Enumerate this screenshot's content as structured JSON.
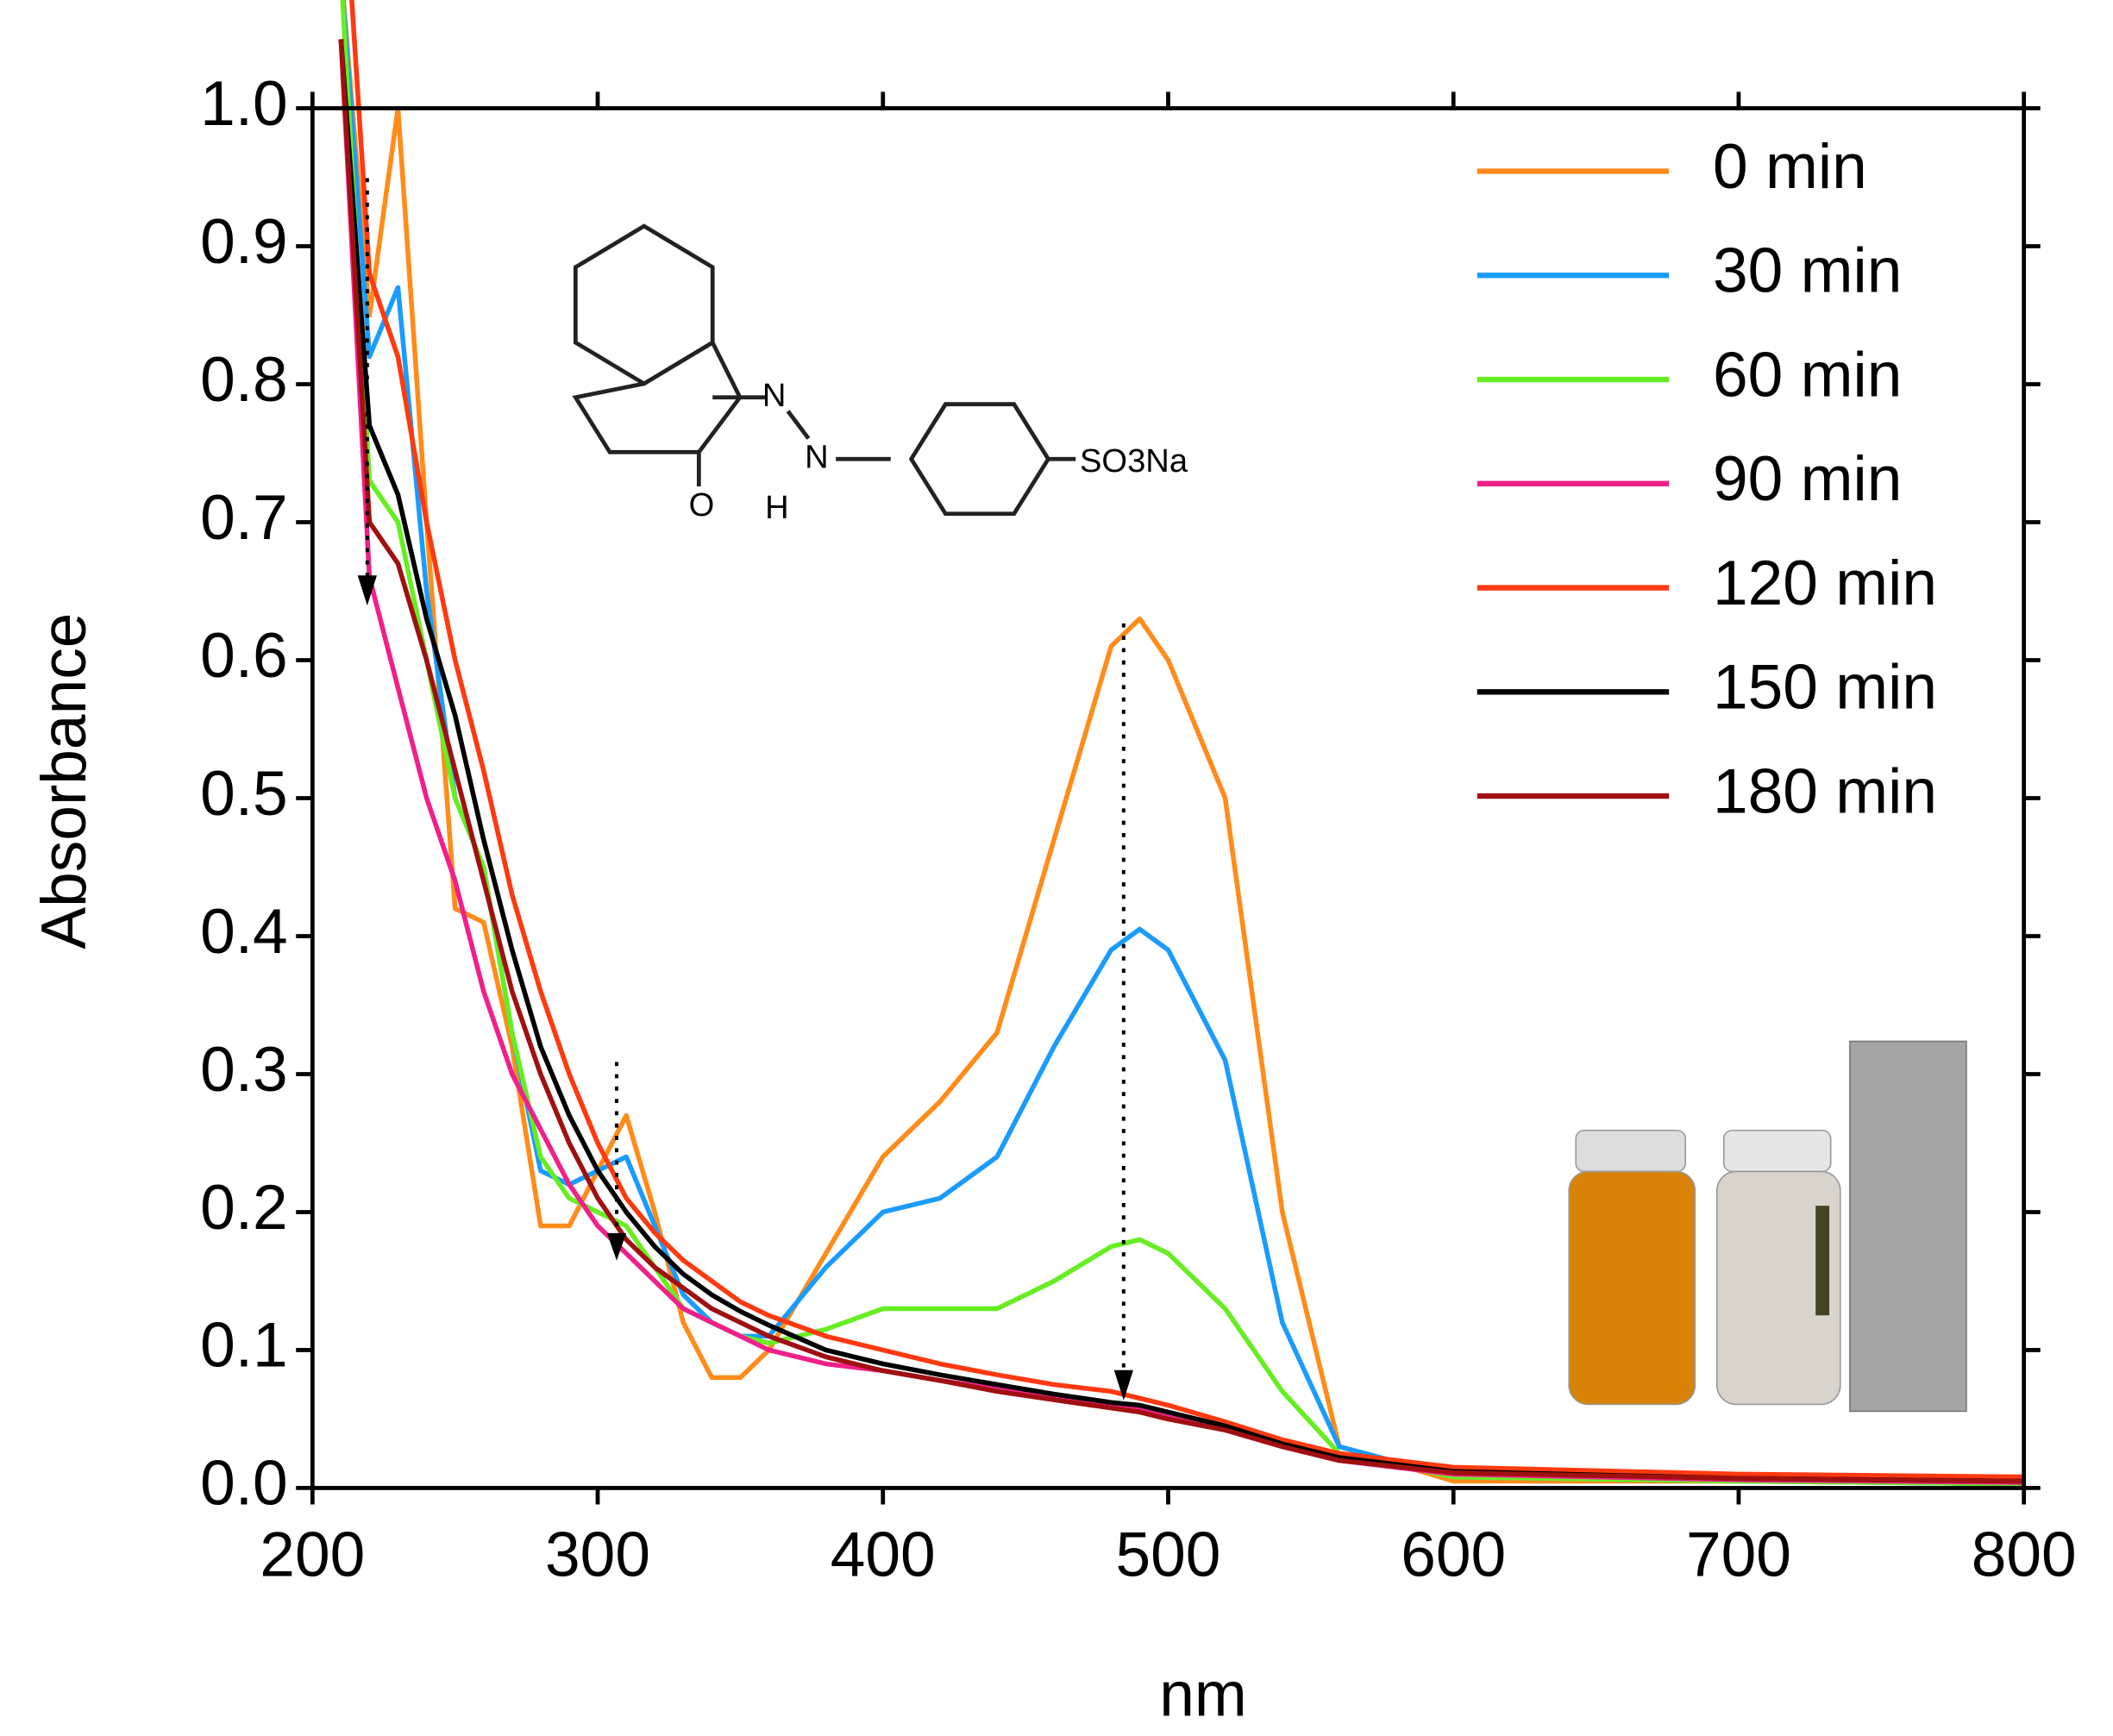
{
  "chart_data": {
    "type": "line",
    "x_label": "nm",
    "y_label": "Absorbance",
    "x": [
      210,
      220,
      230,
      240,
      250,
      260,
      270,
      280,
      290,
      300,
      310,
      320,
      330,
      340,
      350,
      360,
      380,
      400,
      420,
      440,
      460,
      480,
      490,
      500,
      520,
      540,
      560,
      600,
      700,
      800
    ],
    "series": [
      {
        "name": "0 min",
        "color": "#ff8c1a",
        "values": [
          1.1,
          0.85,
          1.0,
          0.7,
          0.42,
          0.41,
          0.32,
          0.19,
          0.19,
          0.23,
          0.27,
          0.2,
          0.12,
          0.08,
          0.08,
          0.1,
          0.17,
          0.24,
          0.28,
          0.33,
          0.47,
          0.61,
          0.63,
          0.6,
          0.5,
          0.2,
          0.03,
          0.005,
          0.005,
          0.003
        ]
      },
      {
        "name": "30 min",
        "color": "#1a9cff",
        "values": [
          1.1,
          0.82,
          0.87,
          0.65,
          0.5,
          0.45,
          0.33,
          0.23,
          0.22,
          0.23,
          0.24,
          0.19,
          0.14,
          0.12,
          0.11,
          0.11,
          0.16,
          0.2,
          0.21,
          0.24,
          0.32,
          0.39,
          0.405,
          0.39,
          0.31,
          0.12,
          0.03,
          0.008,
          0.005,
          0.003
        ]
      },
      {
        "name": "60 min",
        "color": "#66ee22",
        "values": [
          1.1,
          0.73,
          0.7,
          0.6,
          0.5,
          0.45,
          0.33,
          0.24,
          0.21,
          0.2,
          0.19,
          0.16,
          0.13,
          0.12,
          0.11,
          0.105,
          0.115,
          0.13,
          0.13,
          0.13,
          0.15,
          0.175,
          0.18,
          0.17,
          0.13,
          0.07,
          0.025,
          0.008,
          0.005,
          0.003
        ]
      },
      {
        "name": "90 min",
        "color": "#f0208a",
        "values": [
          1.05,
          0.66,
          0.58,
          0.5,
          0.44,
          0.36,
          0.3,
          0.26,
          0.22,
          0.19,
          0.17,
          0.15,
          0.13,
          0.12,
          0.11,
          0.1,
          0.09,
          0.085,
          0.078,
          0.072,
          0.066,
          0.06,
          0.057,
          0.052,
          0.042,
          0.03,
          0.02,
          0.01,
          0.006,
          0.004
        ]
      },
      {
        "name": "120 min",
        "color": "#ff3a10",
        "values": [
          1.2,
          0.88,
          0.82,
          0.7,
          0.6,
          0.52,
          0.43,
          0.36,
          0.3,
          0.25,
          0.21,
          0.185,
          0.165,
          0.15,
          0.135,
          0.125,
          0.11,
          0.1,
          0.09,
          0.082,
          0.075,
          0.07,
          0.065,
          0.06,
          0.048,
          0.035,
          0.025,
          0.015,
          0.01,
          0.008
        ]
      },
      {
        "name": "150 min",
        "color": "#000000",
        "values": [
          1.05,
          0.77,
          0.72,
          0.63,
          0.56,
          0.47,
          0.39,
          0.32,
          0.27,
          0.23,
          0.2,
          0.175,
          0.155,
          0.14,
          0.128,
          0.118,
          0.1,
          0.09,
          0.082,
          0.075,
          0.068,
          0.062,
          0.06,
          0.055,
          0.045,
          0.032,
          0.022,
          0.012,
          0.007,
          0.005
        ]
      },
      {
        "name": "180 min",
        "color": "#a01010",
        "values": [
          1.05,
          0.7,
          0.67,
          0.6,
          0.52,
          0.44,
          0.36,
          0.3,
          0.25,
          0.21,
          0.18,
          0.16,
          0.145,
          0.13,
          0.12,
          0.11,
          0.095,
          0.085,
          0.078,
          0.07,
          0.064,
          0.058,
          0.055,
          0.05,
          0.042,
          0.03,
          0.02,
          0.011,
          0.007,
          0.005
        ]
      }
    ],
    "xlim": [
      200,
      800
    ],
    "ylim": [
      0,
      1
    ],
    "xticks": [
      200,
      300,
      400,
      500,
      600,
      700,
      800
    ],
    "yticks": [
      {
        "value": 0,
        "label": "0.0"
      },
      0.1,
      0.2,
      0.3,
      0.4,
      0.5,
      0.6,
      0.7,
      0.8,
      0.9,
      {
        "value": 1,
        "label": "1.0"
      }
    ],
    "legend": "upper right",
    "structure_labels": [
      "N",
      "N",
      "H",
      "O",
      "SO3Na"
    ]
  }
}
